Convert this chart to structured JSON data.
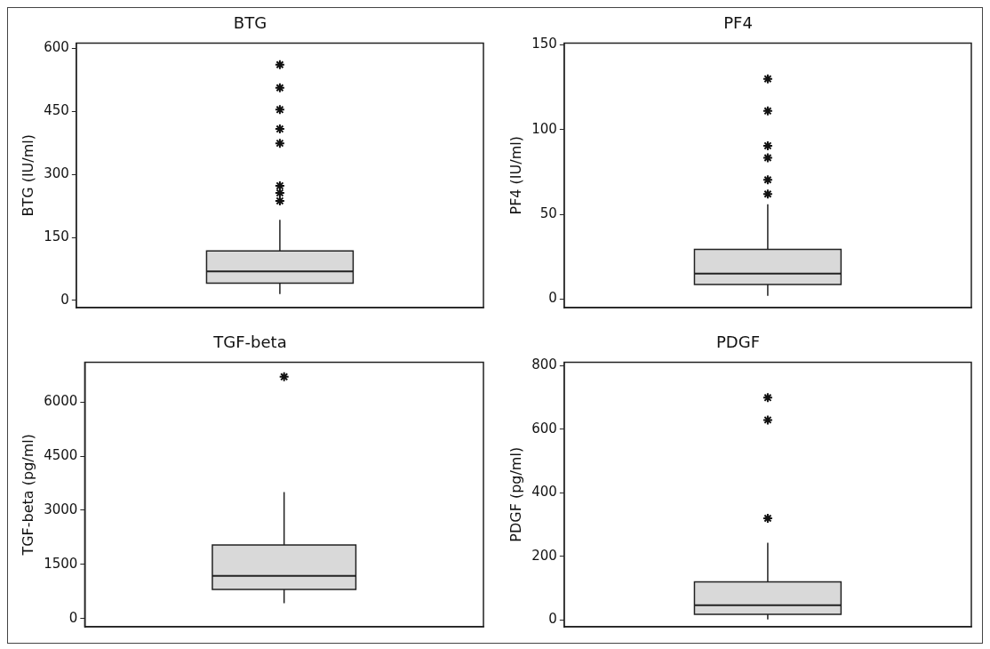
{
  "chart_data": [
    {
      "type": "box",
      "title": "BTG",
      "ylabel": "BTG (IU/ml)",
      "categories": [
        null
      ],
      "color": "#d9d9d9",
      "marker": "star",
      "tick_labels": "y",
      "ylim": [
        -17,
        612
      ],
      "yticks": [
        0,
        150,
        300,
        450,
        600
      ],
      "boxes": [
        {
          "low": 15,
          "q1": 41,
          "median": 69,
          "q3": 118,
          "high": 192,
          "outliers": [
            561,
            506,
            454,
            408,
            374,
            273,
            256,
            237
          ]
        }
      ]
    },
    {
      "type": "box",
      "title": "PF4",
      "ylabel": "PF4 (IU/ml)",
      "categories": [
        null
      ],
      "color": "#d9d9d9",
      "marker": "star",
      "tick_labels": "y",
      "ylim": [
        -5,
        151
      ],
      "yticks": [
        0,
        50,
        100,
        150
      ],
      "boxes": [
        {
          "low": 2,
          "q1": 8.6,
          "median": 15,
          "q3": 29.4,
          "high": 56,
          "outliers": [
            130,
            111,
            90.5,
            83.4,
            70.4,
            62
          ]
        }
      ]
    },
    {
      "type": "box",
      "title": "TGF-beta",
      "ylabel": "TGF-beta (pg/ml)",
      "categories": [
        null
      ],
      "color": "#d9d9d9",
      "marker": "star",
      "tick_labels": "y",
      "ylim": [
        -230,
        7100
      ],
      "yticks": [
        0,
        1500,
        3000,
        4500,
        6000
      ],
      "boxes": [
        {
          "low": 423,
          "q1": 804,
          "median": 1184,
          "q3": 2039,
          "high": 3503,
          "outliers": [
            6700
          ]
        }
      ]
    },
    {
      "type": "box",
      "title": "PDGF",
      "ylabel": "PDGF (pg/ml)",
      "categories": [
        null
      ],
      "color": "#d9d9d9",
      "marker": "star",
      "tick_labels": "y",
      "ylim": [
        -21,
        810
      ],
      "yticks": [
        0,
        200,
        400,
        600,
        800
      ],
      "boxes": [
        {
          "low": 2,
          "q1": 18,
          "median": 47,
          "q3": 120,
          "high": 243,
          "outliers": [
            699,
            629,
            320
          ]
        }
      ]
    }
  ]
}
